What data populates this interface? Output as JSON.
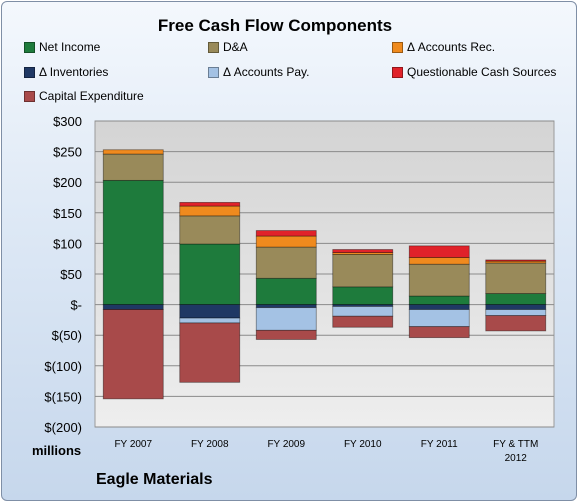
{
  "chart_data": {
    "type": "bar",
    "stacked": true,
    "title": "Free Cash Flow Components",
    "units_label": "millions",
    "company": "Eagle Materials",
    "categories": [
      "FY 2007",
      "FY 2008",
      "FY 2009",
      "FY 2010",
      "FY 2011",
      "FY & TTM 2012"
    ],
    "ylim": [
      -200,
      300
    ],
    "yticks": [
      -200,
      -150,
      -100,
      -50,
      0,
      50,
      100,
      150,
      200,
      250,
      300
    ],
    "ytick_labels": [
      "$(200)",
      "$(150)",
      "$(100)",
      "$(50)",
      "$-",
      "$50",
      "$100",
      "$150",
      "$200",
      "$250",
      "$300"
    ],
    "grid": true,
    "legend_position": "top",
    "series": [
      {
        "name": "Net Income",
        "color": "#1e7b3c",
        "values": [
          203,
          99,
          43,
          29,
          14,
          18
        ]
      },
      {
        "name": "D&A",
        "color": "#998a5a",
        "values": [
          43,
          46,
          51,
          53,
          52,
          50
        ]
      },
      {
        "name": "Δ Accounts Rec.",
        "color": "#ef8a1e",
        "values": [
          7,
          16,
          18,
          3,
          11,
          3
        ]
      },
      {
        "name": "Δ Inventories",
        "color": "#1f3864",
        "values": [
          -8,
          -22,
          -5,
          -3,
          -8,
          -8
        ]
      },
      {
        "name": "Δ Accounts Pay.",
        "color": "#a4c2e4",
        "values": [
          0,
          -8,
          -37,
          -16,
          -28,
          -10
        ]
      },
      {
        "name": "Questionable Cash Sources",
        "color": "#e0222a",
        "values": [
          0,
          6,
          9,
          5,
          19,
          2
        ]
      },
      {
        "name": "Capital Expenditure",
        "color": "#a84a4a",
        "values": [
          -146,
          -97,
          -15,
          -18,
          -18,
          -25
        ]
      }
    ]
  }
}
